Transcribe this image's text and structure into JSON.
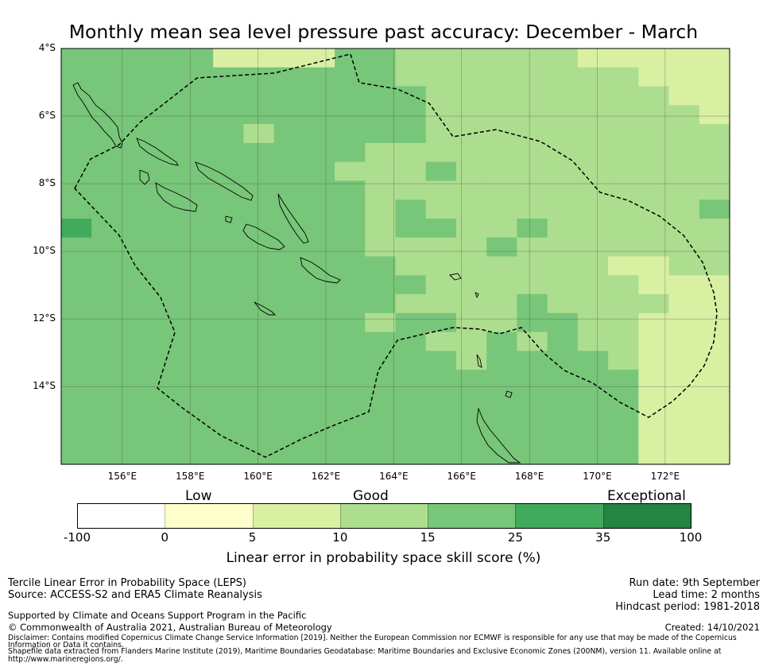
{
  "title": "Monthly mean sea level pressure past accuracy: December - March",
  "map": {
    "lat_labels": [
      "4°S",
      "6°S",
      "8°S",
      "10°S",
      "12°S",
      "14°S"
    ],
    "lon_labels": [
      "156°E",
      "158°E",
      "160°E",
      "162°E",
      "164°E",
      "166°E",
      "168°E",
      "170°E",
      "172°E"
    ],
    "lon_range": [
      154.2,
      173.9
    ],
    "lat_range": [
      -16.3,
      -4.0
    ]
  },
  "colorbar": {
    "categories": [
      "Low",
      "Good",
      "Exceptional"
    ],
    "ticks": [
      "-100",
      "0",
      "5",
      "10",
      "15",
      "25",
      "35",
      "100"
    ],
    "colors": [
      "#ffffff",
      "#ffffcc",
      "#d9f0a3",
      "#addd8e",
      "#78c679",
      "#41ab5d",
      "#238443"
    ],
    "label": "Linear error in probability space skill score (%)"
  },
  "footer": {
    "method": "Tercile Linear Error in Probability Space (LEPS)",
    "source": "Source: ACCESS-S2 and ERA5 Climate Reanalysis",
    "support": "Supported by Climate and Oceans Support Program in the Pacific",
    "copyright": "© Commonwealth of Australia 2021, Australian Bureau of Meteorology",
    "disclaimer_1": "Disclaimer: Contains modified Copernicus Climate Change Service Information [2019]. Neither the European Commission nor ECMWF is responsible for any use that may be made of the Copernicus",
    "disclaimer_2": "Information or Data it contains.",
    "shapefile_1": "Shapefile data extracted from Flanders Marine Institute (2019), Maritime Boundaries Geodatabase: Maritime Boundaries and Exclusive Economic Zones (200NM), version 11. Available online at",
    "shapefile_2": "http://www.marineregions.org/.",
    "run_date": "Run date: 9th September",
    "lead_time": "Lead time: 2 months",
    "hindcast": "Hindcast period: 1981-2018",
    "created": "Created: 14/10/2021"
  }
}
